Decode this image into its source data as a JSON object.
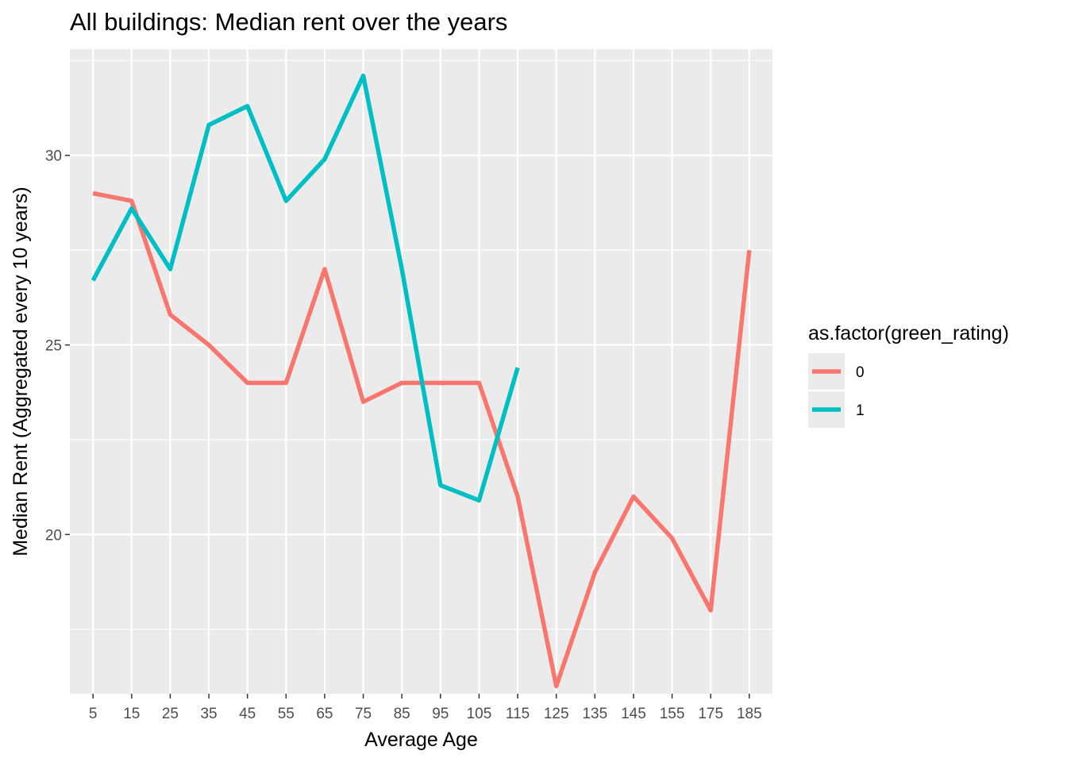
{
  "chart_data": {
    "type": "line",
    "title": "All buildings: Median rent over the years",
    "xlabel": "Average Age",
    "ylabel": "Median Rent (Aggregated every 10 years)",
    "x_scale": "discrete",
    "categories": [
      "5",
      "15",
      "25",
      "35",
      "45",
      "55",
      "65",
      "75",
      "85",
      "95",
      "105",
      "115",
      "125",
      "135",
      "145",
      "155",
      "175",
      "185"
    ],
    "yticks": [
      20,
      25,
      30
    ],
    "ylim": [
      15.8,
      32.8
    ],
    "grid": true,
    "legend": {
      "title": "as.factor(green_rating)",
      "position": "right"
    },
    "series": [
      {
        "name": "0",
        "color": "#F8766D",
        "values": [
          29.0,
          28.8,
          25.8,
          25.0,
          24.0,
          24.0,
          27.0,
          23.5,
          24.0,
          24.0,
          24.0,
          21.0,
          16.0,
          19.0,
          21.0,
          19.9,
          18.0,
          27.5
        ]
      },
      {
        "name": "1",
        "color": "#00BFC4",
        "values": [
          26.7,
          28.6,
          27.0,
          30.8,
          31.3,
          28.8,
          29.9,
          32.1,
          27.0,
          21.3,
          20.9,
          24.4,
          null,
          null,
          null,
          null,
          null,
          null
        ]
      }
    ]
  }
}
